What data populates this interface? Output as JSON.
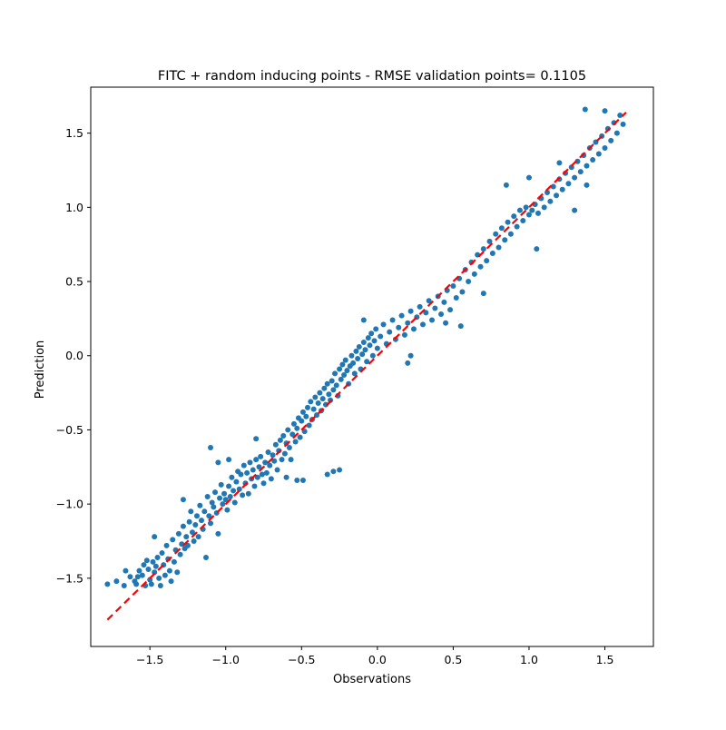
{
  "chart_data": {
    "type": "scatter",
    "title": "FITC + random inducing points - RMSE validation points= 0.1105",
    "xlabel": "Observations",
    "ylabel": "Prediction",
    "xlim": [
      -1.89,
      1.82
    ],
    "ylim": [
      -1.96,
      1.81
    ],
    "x_ticks": [
      {
        "value": -1.5,
        "label": "−1.5"
      },
      {
        "value": -1.0,
        "label": "−1.0"
      },
      {
        "value": -0.5,
        "label": "−0.5"
      },
      {
        "value": 0.0,
        "label": "0.0"
      },
      {
        "value": 0.5,
        "label": "0.5"
      },
      {
        "value": 1.0,
        "label": "1.0"
      },
      {
        "value": 1.5,
        "label": "1.5"
      }
    ],
    "y_ticks": [
      {
        "value": -1.5,
        "label": "−1.5"
      },
      {
        "value": -1.0,
        "label": "−1.0"
      },
      {
        "value": -0.5,
        "label": "−0.5"
      },
      {
        "value": 0.0,
        "label": "0.0"
      },
      {
        "value": 0.5,
        "label": "0.5"
      },
      {
        "value": 1.0,
        "label": "1.0"
      },
      {
        "value": 1.5,
        "label": "1.5"
      }
    ],
    "grid": false,
    "series": [
      {
        "kind": "scatter",
        "color": "#1f77b4",
        "points": [
          [
            -1.78,
            -1.54
          ],
          [
            -1.72,
            -1.52
          ],
          [
            -1.67,
            -1.55
          ],
          [
            -1.66,
            -1.45
          ],
          [
            -1.63,
            -1.49
          ],
          [
            -1.6,
            -1.52
          ],
          [
            -1.59,
            -1.54
          ],
          [
            -1.58,
            -1.49
          ],
          [
            -1.57,
            -1.45
          ],
          [
            -1.55,
            -1.48
          ],
          [
            -1.54,
            -1.41
          ],
          [
            -1.53,
            -1.55
          ],
          [
            -1.52,
            -1.38
          ],
          [
            -1.51,
            -1.44
          ],
          [
            -1.5,
            -1.51
          ],
          [
            -1.49,
            -1.54
          ],
          [
            -1.48,
            -1.39
          ],
          [
            -1.47,
            -1.46
          ],
          [
            -1.46,
            -1.42
          ],
          [
            -1.45,
            -1.36
          ],
          [
            -1.44,
            -1.5
          ],
          [
            -1.43,
            -1.55
          ],
          [
            -1.42,
            -1.33
          ],
          [
            -1.41,
            -1.41
          ],
          [
            -1.4,
            -1.48
          ],
          [
            -1.39,
            -1.28
          ],
          [
            -1.38,
            -1.37
          ],
          [
            -1.37,
            -1.45
          ],
          [
            -1.36,
            -1.52
          ],
          [
            -1.35,
            -1.24
          ],
          [
            -1.34,
            -1.39
          ],
          [
            -1.33,
            -1.31
          ],
          [
            -1.32,
            -1.46
          ],
          [
            -1.31,
            -1.2
          ],
          [
            -1.3,
            -1.34
          ],
          [
            -1.29,
            -1.27
          ],
          [
            -1.28,
            -1.15
          ],
          [
            -1.27,
            -1.3
          ],
          [
            -1.26,
            -1.22
          ],
          [
            -1.25,
            -1.28
          ],
          [
            -1.24,
            -1.12
          ],
          [
            -1.23,
            -1.05
          ],
          [
            -1.22,
            -1.19
          ],
          [
            -1.21,
            -1.25
          ],
          [
            -1.2,
            -1.14
          ],
          [
            -1.19,
            -1.08
          ],
          [
            -1.18,
            -1.22
          ],
          [
            -1.17,
            -1.01
          ],
          [
            -1.16,
            -1.11
          ],
          [
            -1.15,
            -1.17
          ],
          [
            -1.14,
            -1.05
          ],
          [
            -1.13,
            -1.36
          ],
          [
            -1.12,
            -0.95
          ],
          [
            -1.11,
            -1.08
          ],
          [
            -1.1,
            -1.13
          ],
          [
            -1.09,
            -0.99
          ],
          [
            -1.08,
            -1.02
          ],
          [
            -1.07,
            -0.92
          ],
          [
            -1.06,
            -1.06
          ],
          [
            -1.05,
            -1.2
          ],
          [
            -1.04,
            -0.96
          ],
          [
            -1.03,
            -0.87
          ],
          [
            -1.02,
            -1.0
          ],
          [
            -1.01,
            -0.93
          ],
          [
            -1.0,
            -0.97
          ],
          [
            -0.99,
            -1.04
          ],
          [
            -0.98,
            -0.88
          ],
          [
            -0.97,
            -0.95
          ],
          [
            -0.96,
            -0.82
          ],
          [
            -0.95,
            -0.91
          ],
          [
            -0.94,
            -0.99
          ],
          [
            -0.93,
            -0.85
          ],
          [
            -0.92,
            -0.78
          ],
          [
            -0.91,
            -0.9
          ],
          [
            -0.9,
            -0.8
          ],
          [
            -0.89,
            -0.94
          ],
          [
            -0.88,
            -0.74
          ],
          [
            -0.87,
            -0.86
          ],
          [
            -0.86,
            -0.79
          ],
          [
            -0.85,
            -0.93
          ],
          [
            -0.84,
            -0.72
          ],
          [
            -0.83,
            -0.83
          ],
          [
            -0.82,
            -0.77
          ],
          [
            -0.81,
            -0.88
          ],
          [
            -0.8,
            -0.7
          ],
          [
            -0.79,
            -0.82
          ],
          [
            -0.78,
            -0.75
          ],
          [
            -0.77,
            -0.68
          ],
          [
            -0.76,
            -0.8
          ],
          [
            -0.75,
            -0.86
          ],
          [
            -0.74,
            -0.72
          ],
          [
            -0.73,
            -0.79
          ],
          [
            -0.72,
            -0.65
          ],
          [
            -0.71,
            -0.74
          ],
          [
            -0.7,
            -0.83
          ],
          [
            -0.69,
            -0.67
          ],
          [
            -0.68,
            -0.71
          ],
          [
            -0.67,
            -0.6
          ],
          [
            -0.66,
            -0.77
          ],
          [
            -0.65,
            -0.64
          ],
          [
            -0.64,
            -0.57
          ],
          [
            -0.63,
            -0.7
          ],
          [
            -0.62,
            -0.54
          ],
          [
            -0.61,
            -0.66
          ],
          [
            -0.6,
            -0.59
          ],
          [
            -0.59,
            -0.5
          ],
          [
            -0.58,
            -0.62
          ],
          [
            -0.57,
            -0.7
          ],
          [
            -0.56,
            -0.53
          ],
          [
            -0.55,
            -0.46
          ],
          [
            -0.54,
            -0.58
          ],
          [
            -0.53,
            -0.49
          ],
          [
            -0.52,
            -0.42
          ],
          [
            -0.51,
            -0.55
          ],
          [
            -0.5,
            -0.44
          ],
          [
            -0.49,
            -0.38
          ],
          [
            -0.48,
            -0.51
          ],
          [
            -0.47,
            -0.41
          ],
          [
            -0.46,
            -0.35
          ],
          [
            -0.45,
            -0.47
          ],
          [
            -0.44,
            -0.31
          ],
          [
            -0.43,
            -0.43
          ],
          [
            -0.42,
            -0.36
          ],
          [
            -0.41,
            -0.28
          ],
          [
            -0.4,
            -0.4
          ],
          [
            -0.39,
            -0.32
          ],
          [
            -0.38,
            -0.25
          ],
          [
            -0.37,
            -0.37
          ],
          [
            -0.36,
            -0.29
          ],
          [
            -0.35,
            -0.22
          ],
          [
            -0.34,
            -0.33
          ],
          [
            -0.33,
            -0.19
          ],
          [
            -0.32,
            -0.26
          ],
          [
            -0.31,
            -0.3
          ],
          [
            -0.3,
            -0.17
          ],
          [
            -0.29,
            -0.23
          ],
          [
            -0.28,
            -0.12
          ],
          [
            -0.27,
            -0.2
          ],
          [
            -0.26,
            -0.27
          ],
          [
            -0.25,
            -0.09
          ],
          [
            -0.24,
            -0.16
          ],
          [
            -0.23,
            -0.06
          ],
          [
            -0.22,
            -0.13
          ],
          [
            -0.21,
            -0.03
          ],
          [
            -0.2,
            -0.1
          ],
          [
            -0.19,
            -0.19
          ],
          [
            -0.18,
            -0.07
          ],
          [
            -0.17,
            0.0
          ],
          [
            -0.16,
            -0.05
          ],
          [
            -0.15,
            -0.12
          ],
          [
            -0.14,
            0.03
          ],
          [
            -0.13,
            -0.02
          ],
          [
            -0.12,
            0.06
          ],
          [
            -0.11,
            -0.09
          ],
          [
            -0.1,
            0.01
          ],
          [
            -0.09,
            0.09
          ],
          [
            -0.08,
            0.04
          ],
          [
            -0.07,
            -0.04
          ],
          [
            -0.06,
            0.12
          ],
          [
            -0.05,
            0.07
          ],
          [
            -0.04,
            0.15
          ],
          [
            -0.03,
            0.0
          ],
          [
            -0.02,
            0.1
          ],
          [
            -0.01,
            0.18
          ],
          [
            0.0,
            0.05
          ],
          [
            0.02,
            0.13
          ],
          [
            0.04,
            0.21
          ],
          [
            0.06,
            0.08
          ],
          [
            0.08,
            0.16
          ],
          [
            0.1,
            0.24
          ],
          [
            0.12,
            0.11
          ],
          [
            0.14,
            0.19
          ],
          [
            0.16,
            0.27
          ],
          [
            0.18,
            0.14
          ],
          [
            0.2,
            0.22
          ],
          [
            0.22,
            0.3
          ],
          [
            0.24,
            0.18
          ],
          [
            0.26,
            0.26
          ],
          [
            0.28,
            0.33
          ],
          [
            0.3,
            0.21
          ],
          [
            0.32,
            0.29
          ],
          [
            0.34,
            0.37
          ],
          [
            0.36,
            0.24
          ],
          [
            0.38,
            0.32
          ],
          [
            0.4,
            0.4
          ],
          [
            0.42,
            0.28
          ],
          [
            0.44,
            0.36
          ],
          [
            0.46,
            0.44
          ],
          [
            0.48,
            0.31
          ],
          [
            0.5,
            0.47
          ],
          [
            0.52,
            0.39
          ],
          [
            0.54,
            0.52
          ],
          [
            0.56,
            0.43
          ],
          [
            0.58,
            0.58
          ],
          [
            0.6,
            0.5
          ],
          [
            0.62,
            0.63
          ],
          [
            0.64,
            0.55
          ],
          [
            0.66,
            0.68
          ],
          [
            0.68,
            0.6
          ],
          [
            0.7,
            0.72
          ],
          [
            0.72,
            0.64
          ],
          [
            0.74,
            0.77
          ],
          [
            0.76,
            0.69
          ],
          [
            0.78,
            0.82
          ],
          [
            0.8,
            0.73
          ],
          [
            0.82,
            0.86
          ],
          [
            0.84,
            0.78
          ],
          [
            0.86,
            0.9
          ],
          [
            0.88,
            0.82
          ],
          [
            0.9,
            0.94
          ],
          [
            0.92,
            0.87
          ],
          [
            0.94,
            0.98
          ],
          [
            0.96,
            0.91
          ],
          [
            0.98,
            1.0
          ],
          [
            1.0,
            0.95
          ],
          [
            1.02,
            0.98
          ],
          [
            1.04,
            1.02
          ],
          [
            1.06,
            0.96
          ],
          [
            1.08,
            1.06
          ],
          [
            1.1,
            1.0
          ],
          [
            1.12,
            1.1
          ],
          [
            1.14,
            1.04
          ],
          [
            1.16,
            1.14
          ],
          [
            1.18,
            1.08
          ],
          [
            1.2,
            1.19
          ],
          [
            1.22,
            1.12
          ],
          [
            1.24,
            1.23
          ],
          [
            1.26,
            1.16
          ],
          [
            1.28,
            1.27
          ],
          [
            1.3,
            1.2
          ],
          [
            1.32,
            1.31
          ],
          [
            1.34,
            1.24
          ],
          [
            1.36,
            1.35
          ],
          [
            1.38,
            1.28
          ],
          [
            1.4,
            1.4
          ],
          [
            1.42,
            1.32
          ],
          [
            1.44,
            1.44
          ],
          [
            1.46,
            1.36
          ],
          [
            1.48,
            1.48
          ],
          [
            1.5,
            1.4
          ],
          [
            1.52,
            1.53
          ],
          [
            1.54,
            1.45
          ],
          [
            1.56,
            1.57
          ],
          [
            1.58,
            1.5
          ],
          [
            1.6,
            1.62
          ],
          [
            1.62,
            1.56
          ],
          [
            1.37,
            1.66
          ],
          [
            1.5,
            1.65
          ],
          [
            -0.53,
            -0.84
          ],
          [
            -0.49,
            -0.84
          ],
          [
            -0.33,
            -0.8
          ],
          [
            -0.29,
            -0.78
          ],
          [
            -0.25,
            -0.77
          ],
          [
            -0.98,
            -0.7
          ],
          [
            -0.8,
            -0.56
          ],
          [
            -1.47,
            -1.22
          ],
          [
            -1.28,
            -0.97
          ],
          [
            -0.09,
            0.24
          ],
          [
            0.55,
            0.2
          ],
          [
            0.7,
            0.42
          ],
          [
            1.05,
            0.72
          ],
          [
            1.2,
            1.3
          ],
          [
            1.3,
            0.98
          ],
          [
            1.38,
            1.15
          ],
          [
            0.2,
            -0.05
          ],
          [
            0.22,
            0.0
          ],
          [
            0.45,
            0.22
          ],
          [
            -1.05,
            -0.72
          ],
          [
            -1.1,
            -0.62
          ],
          [
            -0.6,
            -0.82
          ],
          [
            0.85,
            1.15
          ],
          [
            1.0,
            1.2
          ]
        ]
      },
      {
        "kind": "line",
        "style": "dashed",
        "color": "#ff0000",
        "x": [
          -1.78,
          1.64
        ],
        "y": [
          -1.78,
          1.64
        ]
      }
    ]
  }
}
